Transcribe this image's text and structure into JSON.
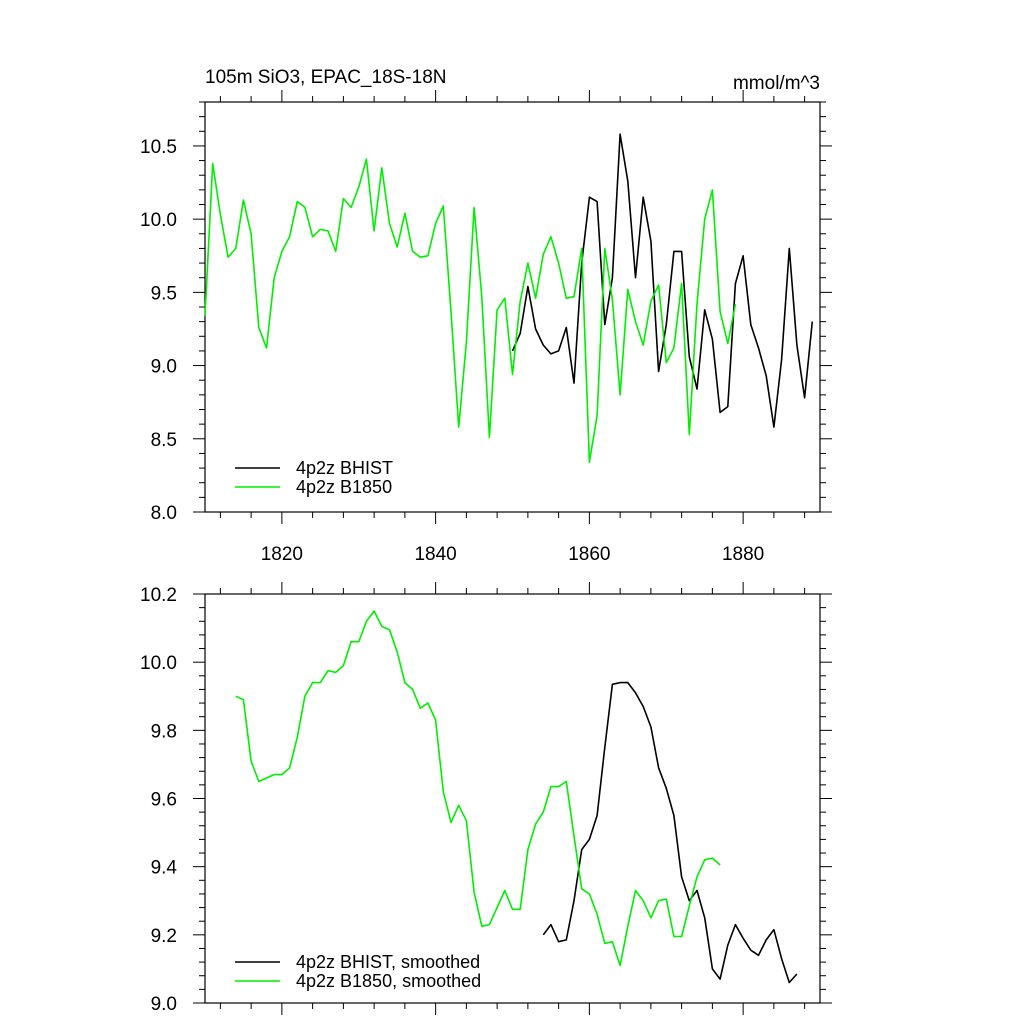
{
  "chart_data": [
    {
      "type": "line",
      "title_left": "105m SiO3, EPAC_18S-18N",
      "title_right": "mmol/m^3",
      "xlim": [
        1810,
        1890
      ],
      "ylim": [
        8.0,
        10.8
      ],
      "yticks": [
        "8.0",
        "8.5",
        "9.0",
        "9.5",
        "10.0",
        "10.5"
      ],
      "ytick_values": [
        8.0,
        8.5,
        9.0,
        9.5,
        10.0,
        10.5
      ],
      "xticks": [
        "1820",
        "1840",
        "1860",
        "1880"
      ],
      "xtick_values": [
        1820,
        1840,
        1860,
        1880
      ],
      "legend_position": "bottom-left",
      "series": [
        {
          "name": "4p2z BHIST",
          "color": "#000000",
          "x": [
            1850,
            1851,
            1852,
            1853,
            1854,
            1855,
            1856,
            1857,
            1858,
            1859,
            1860,
            1861,
            1862,
            1863,
            1864,
            1865,
            1866,
            1867,
            1868,
            1869,
            1870,
            1871,
            1872,
            1873,
            1874,
            1875,
            1876,
            1877,
            1878,
            1879,
            1880,
            1881,
            1882,
            1883,
            1884,
            1885,
            1886,
            1887,
            1888,
            1889
          ],
          "y": [
            9.1,
            9.22,
            9.54,
            9.25,
            9.14,
            9.08,
            9.1,
            9.26,
            8.88,
            9.7,
            10.15,
            10.12,
            9.28,
            9.6,
            10.58,
            10.26,
            9.6,
            10.15,
            9.85,
            8.96,
            9.28,
            9.78,
            9.78,
            9.06,
            8.84,
            9.38,
            9.18,
            8.68,
            8.72,
            9.56,
            9.75,
            9.28,
            9.12,
            8.93,
            8.58,
            9.04,
            9.8,
            9.14,
            8.78,
            9.3
          ]
        },
        {
          "name": "4p2z B1850",
          "color": "#00ee00",
          "x": [
            1810,
            1811,
            1812,
            1813,
            1814,
            1815,
            1816,
            1817,
            1818,
            1819,
            1820,
            1821,
            1822,
            1823,
            1824,
            1825,
            1826,
            1827,
            1828,
            1829,
            1830,
            1831,
            1832,
            1833,
            1834,
            1835,
            1836,
            1837,
            1838,
            1839,
            1840,
            1841,
            1842,
            1843,
            1844,
            1845,
            1846,
            1847,
            1848,
            1849,
            1850,
            1851,
            1852,
            1853,
            1854,
            1855,
            1856,
            1857,
            1858,
            1859,
            1860,
            1861,
            1862,
            1863,
            1864,
            1865,
            1866,
            1867,
            1868,
            1869,
            1870,
            1871,
            1872,
            1873,
            1874,
            1875,
            1876,
            1877,
            1878,
            1879
          ],
          "y": [
            9.34,
            10.38,
            10.03,
            9.74,
            9.8,
            10.13,
            9.9,
            9.26,
            9.12,
            9.6,
            9.78,
            9.88,
            10.12,
            10.08,
            9.88,
            9.93,
            9.92,
            9.78,
            10.14,
            10.08,
            10.22,
            10.41,
            9.92,
            10.35,
            9.97,
            9.81,
            10.04,
            9.78,
            9.74,
            9.75,
            9.97,
            10.09,
            9.37,
            8.58,
            9.16,
            10.08,
            9.47,
            8.51,
            9.38,
            9.46,
            8.94,
            9.44,
            9.7,
            9.46,
            9.76,
            9.88,
            9.7,
            9.46,
            9.47,
            9.8,
            8.34,
            8.66,
            9.8,
            9.45,
            8.8,
            9.52,
            9.3,
            9.14,
            9.44,
            9.55,
            9.02,
            9.12,
            9.56,
            8.53,
            9.42,
            10.0,
            10.2,
            9.37,
            9.15,
            9.42
          ]
        }
      ]
    },
    {
      "type": "line",
      "xlim": [
        1810,
        1890
      ],
      "ylim": [
        9.0,
        10.2
      ],
      "yticks": [
        "9.0",
        "9.2",
        "9.4",
        "9.6",
        "9.8",
        "10.0",
        "10.2"
      ],
      "ytick_values": [
        9.0,
        9.2,
        9.4,
        9.6,
        9.8,
        10.0,
        10.2
      ],
      "xtick_values": [
        1820,
        1840,
        1860,
        1880
      ],
      "legend_position": "bottom-left",
      "series": [
        {
          "name": "4p2z BHIST, smoothed",
          "color": "#000000",
          "x": [
            1854,
            1855,
            1856,
            1857,
            1858,
            1859,
            1860,
            1861,
            1862,
            1863,
            1864,
            1865,
            1866,
            1867,
            1868,
            1869,
            1870,
            1871,
            1872,
            1873,
            1874,
            1875,
            1876,
            1877,
            1878,
            1879,
            1880,
            1881,
            1882,
            1883,
            1884,
            1885,
            1886,
            1887
          ],
          "y": [
            9.2,
            9.23,
            9.18,
            9.185,
            9.3,
            9.45,
            9.48,
            9.55,
            9.75,
            9.935,
            9.94,
            9.94,
            9.91,
            9.87,
            9.81,
            9.69,
            9.63,
            9.55,
            9.37,
            9.3,
            9.33,
            9.25,
            9.1,
            9.07,
            9.17,
            9.23,
            9.19,
            9.155,
            9.14,
            9.185,
            9.215,
            9.13,
            9.06,
            9.085
          ]
        },
        {
          "name": "4p2z B1850, smoothed",
          "color": "#00ee00",
          "x": [
            1814,
            1815,
            1816,
            1817,
            1818,
            1819,
            1820,
            1821,
            1822,
            1823,
            1824,
            1825,
            1826,
            1827,
            1828,
            1829,
            1830,
            1831,
            1832,
            1833,
            1834,
            1835,
            1836,
            1837,
            1838,
            1839,
            1840,
            1841,
            1842,
            1843,
            1844,
            1845,
            1846,
            1847,
            1848,
            1849,
            1850,
            1851,
            1852,
            1853,
            1854,
            1855,
            1856,
            1857,
            1858,
            1859,
            1860,
            1861,
            1862,
            1863,
            1864,
            1865,
            1866,
            1867,
            1868,
            1869,
            1870,
            1871,
            1872,
            1873,
            1874,
            1875,
            1876,
            1877
          ],
          "y": [
            9.9,
            9.89,
            9.71,
            9.65,
            9.66,
            9.67,
            9.67,
            9.69,
            9.78,
            9.9,
            9.94,
            9.94,
            9.975,
            9.97,
            9.99,
            10.06,
            10.06,
            10.12,
            10.15,
            10.105,
            10.095,
            10.03,
            9.94,
            9.92,
            9.865,
            9.88,
            9.83,
            9.62,
            9.53,
            9.58,
            9.535,
            9.325,
            9.225,
            9.23,
            9.28,
            9.33,
            9.275,
            9.275,
            9.45,
            9.525,
            9.56,
            9.635,
            9.635,
            9.65,
            9.49,
            9.335,
            9.32,
            9.26,
            9.175,
            9.18,
            9.11,
            9.225,
            9.33,
            9.3,
            9.25,
            9.3,
            9.305,
            9.195,
            9.195,
            9.285,
            9.37,
            9.42,
            9.425,
            9.405
          ]
        }
      ]
    }
  ]
}
